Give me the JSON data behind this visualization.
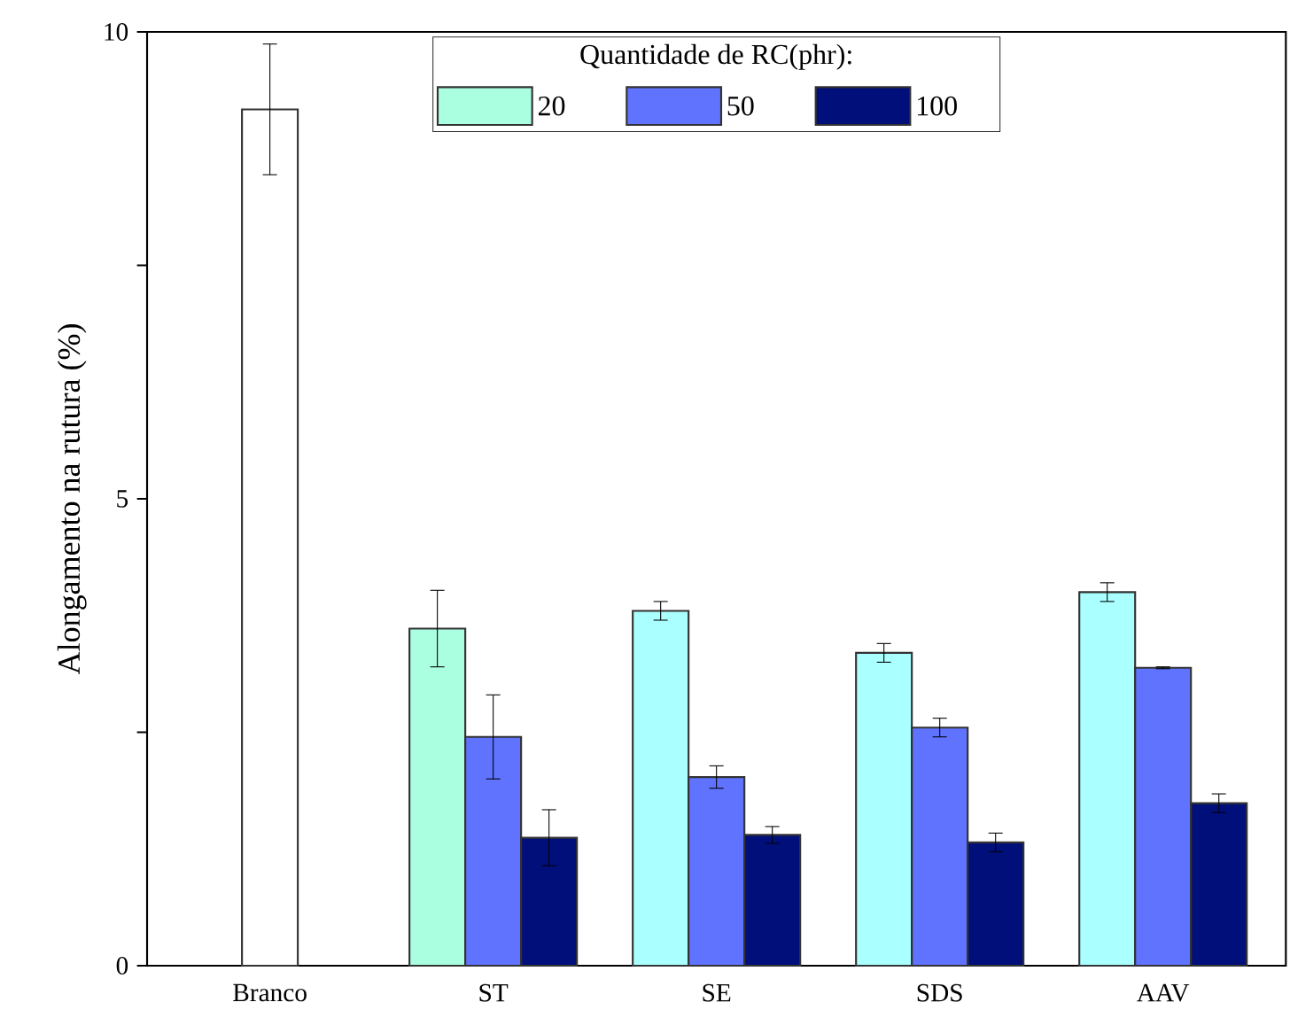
{
  "chart_data": {
    "type": "bar",
    "ylabel": "Alongamento na rutura (%)",
    "legend_title": "Quantidade de RC(phr):",
    "legend": "top",
    "categories": [
      "Branco",
      "ST",
      "SE",
      "SDS",
      "AAV"
    ],
    "series": [
      {
        "color": "#ffffff",
        "values": [
          9.17,
          null,
          null,
          null,
          null
        ],
        "errors": [
          0.7,
          null,
          null,
          null,
          null
        ]
      },
      {
        "name": "20",
        "color": "#aaffe0",
        "colors": [
          "#aaffe0",
          "#aaffe0",
          "#aaffff",
          "#aaffff",
          "#aaffff"
        ],
        "values": [
          null,
          3.61,
          3.8,
          3.35,
          4.0
        ],
        "errors": [
          null,
          0.41,
          0.1,
          0.1,
          0.1
        ]
      },
      {
        "name": "50",
        "color": "#5f73ff",
        "values": [
          null,
          2.45,
          2.02,
          2.55,
          3.19
        ],
        "errors": [
          null,
          0.45,
          0.12,
          0.1,
          0.01
        ]
      },
      {
        "name": "100",
        "color": "#000f7a",
        "values": [
          null,
          1.37,
          1.4,
          1.32,
          1.74
        ],
        "errors": [
          null,
          0.3,
          0.09,
          0.1,
          0.1
        ]
      }
    ],
    "ylim": [
      0,
      10
    ],
    "yticks": [
      0,
      {
        "value": 2.5,
        "label": null
      },
      5,
      {
        "value": 7.5,
        "label": null
      },
      10
    ],
    "grid": false
  }
}
